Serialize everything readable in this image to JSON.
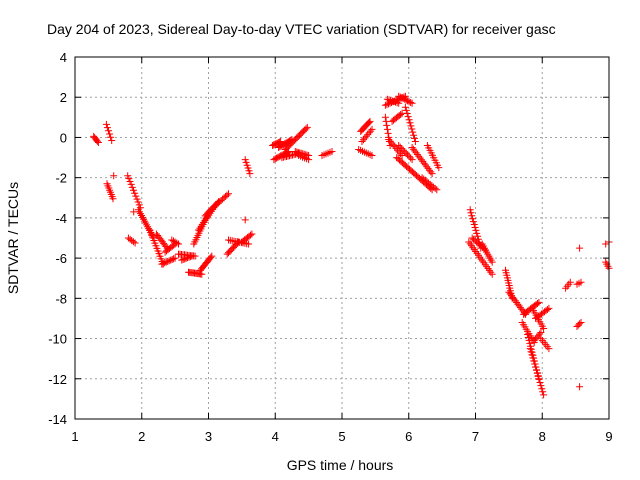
{
  "chart_data": {
    "type": "scatter",
    "title": "Day 204 of 2023, Sidereal Day-to-day VTEC variation (SDTVAR) for receiver gasc",
    "xlabel": "GPS time / hours",
    "ylabel": "SDTVAR / TECUs",
    "xlim": [
      1,
      9
    ],
    "ylim": [
      -14,
      4
    ],
    "x_ticks": [
      1,
      2,
      3,
      4,
      5,
      6,
      7,
      8,
      9
    ],
    "y_ticks": [
      4,
      2,
      0,
      -2,
      -4,
      -6,
      -8,
      -10,
      -12,
      -14
    ],
    "x_tick_labels": [
      "1",
      "2",
      "3",
      "4",
      "5",
      "6",
      "7",
      "8",
      "9"
    ],
    "y_tick_labels": [
      "4",
      "2",
      "0",
      "-2",
      "-4",
      "-6",
      "-8",
      "-10",
      "-12",
      "-14"
    ],
    "grid": true,
    "marker": "+",
    "color": "#ff0000",
    "segments": [
      {
        "x0": 1.28,
        "y0": 0.05,
        "x1": 1.35,
        "y1": -0.25,
        "n": 6
      },
      {
        "x0": 1.47,
        "y0": 0.65,
        "x1": 1.55,
        "y1": -0.15,
        "n": 6
      },
      {
        "x0": 1.48,
        "y0": -2.3,
        "x1": 1.57,
        "y1": -3.05,
        "n": 8
      },
      {
        "x0": 1.58,
        "y0": -1.9,
        "x1": 1.58,
        "y1": -1.9,
        "n": 1
      },
      {
        "x0": 1.79,
        "y0": -1.9,
        "x1": 1.98,
        "y1": -3.5,
        "n": 12
      },
      {
        "x0": 1.88,
        "y0": -3.7,
        "x1": 1.88,
        "y1": -3.7,
        "n": 1
      },
      {
        "x0": 1.8,
        "y0": -5.0,
        "x1": 1.9,
        "y1": -5.25,
        "n": 5
      },
      {
        "x0": 1.95,
        "y0": -3.6,
        "x1": 2.18,
        "y1": -5.0,
        "n": 16
      },
      {
        "x0": 2.12,
        "y0": -4.6,
        "x1": 2.32,
        "y1": -6.3,
        "n": 14
      },
      {
        "x0": 2.22,
        "y0": -4.8,
        "x1": 2.38,
        "y1": -5.5,
        "n": 10
      },
      {
        "x0": 2.3,
        "y0": -6.3,
        "x1": 2.5,
        "y1": -6.0,
        "n": 10
      },
      {
        "x0": 2.35,
        "y0": -5.7,
        "x1": 2.5,
        "y1": -5.3,
        "n": 8
      },
      {
        "x0": 2.45,
        "y0": -5.1,
        "x1": 2.55,
        "y1": -5.3,
        "n": 5
      },
      {
        "x0": 2.55,
        "y0": -5.8,
        "x1": 2.8,
        "y1": -5.9,
        "n": 12
      },
      {
        "x0": 2.6,
        "y0": -6.1,
        "x1": 2.75,
        "y1": -5.9,
        "n": 8
      },
      {
        "x0": 2.7,
        "y0": -6.7,
        "x1": 2.9,
        "y1": -6.8,
        "n": 12
      },
      {
        "x0": 2.78,
        "y0": -5.3,
        "x1": 2.98,
        "y1": -3.9,
        "n": 14
      },
      {
        "x0": 2.88,
        "y0": -6.6,
        "x1": 3.05,
        "y1": -5.9,
        "n": 12
      },
      {
        "x0": 2.85,
        "y0": -4.6,
        "x1": 3.1,
        "y1": -3.4,
        "n": 14
      },
      {
        "x0": 2.95,
        "y0": -3.9,
        "x1": 3.15,
        "y1": -3.2,
        "n": 12
      },
      {
        "x0": 3.1,
        "y0": -3.4,
        "x1": 3.3,
        "y1": -2.8,
        "n": 10
      },
      {
        "x0": 3.28,
        "y0": -5.8,
        "x1": 3.45,
        "y1": -5.2,
        "n": 10
      },
      {
        "x0": 3.3,
        "y0": -5.1,
        "x1": 3.6,
        "y1": -5.3,
        "n": 12
      },
      {
        "x0": 3.5,
        "y0": -5.2,
        "x1": 3.65,
        "y1": -4.8,
        "n": 8
      },
      {
        "x0": 3.55,
        "y0": -4.1,
        "x1": 3.55,
        "y1": -4.1,
        "n": 1
      },
      {
        "x0": 3.55,
        "y0": -1.1,
        "x1": 3.62,
        "y1": -1.8,
        "n": 6
      },
      {
        "x0": 3.96,
        "y0": -0.4,
        "x1": 4.08,
        "y1": -0.2,
        "n": 8
      },
      {
        "x0": 3.98,
        "y0": -1.1,
        "x1": 4.2,
        "y1": -0.7,
        "n": 12
      },
      {
        "x0": 4.05,
        "y0": -0.5,
        "x1": 4.25,
        "y1": -0.1,
        "n": 12
      },
      {
        "x0": 4.1,
        "y0": -1.0,
        "x1": 4.35,
        "y1": -0.8,
        "n": 12
      },
      {
        "x0": 4.15,
        "y0": -0.6,
        "x1": 4.48,
        "y1": 0.5,
        "n": 18
      },
      {
        "x0": 4.3,
        "y0": -0.7,
        "x1": 4.5,
        "y1": -0.9,
        "n": 10
      },
      {
        "x0": 4.35,
        "y0": -0.9,
        "x1": 4.5,
        "y1": -1.1,
        "n": 6
      },
      {
        "x0": 4.7,
        "y0": -0.9,
        "x1": 4.85,
        "y1": -0.7,
        "n": 6
      },
      {
        "x0": 5.25,
        "y0": -0.6,
        "x1": 5.45,
        "y1": -0.9,
        "n": 8
      },
      {
        "x0": 5.28,
        "y0": 0.3,
        "x1": 5.42,
        "y1": 0.8,
        "n": 10
      },
      {
        "x0": 5.3,
        "y0": -0.2,
        "x1": 5.45,
        "y1": 0.4,
        "n": 8
      },
      {
        "x0": 5.65,
        "y0": 1.6,
        "x1": 5.95,
        "y1": 2.05,
        "n": 14
      },
      {
        "x0": 5.68,
        "y0": 1.9,
        "x1": 5.85,
        "y1": 1.7,
        "n": 8
      },
      {
        "x0": 5.85,
        "y0": 2.05,
        "x1": 6.05,
        "y1": 1.7,
        "n": 10
      },
      {
        "x0": 5.65,
        "y0": 1.0,
        "x1": 5.72,
        "y1": -0.4,
        "n": 8
      },
      {
        "x0": 5.7,
        "y0": -0.1,
        "x1": 5.9,
        "y1": -0.9,
        "n": 10
      },
      {
        "x0": 5.75,
        "y0": 0.8,
        "x1": 5.9,
        "y1": 1.2,
        "n": 8
      },
      {
        "x0": 5.85,
        "y0": -0.4,
        "x1": 6.05,
        "y1": -1.1,
        "n": 10
      },
      {
        "x0": 5.95,
        "y0": 1.5,
        "x1": 6.1,
        "y1": -0.2,
        "n": 12
      },
      {
        "x0": 5.82,
        "y0": -1.0,
        "x1": 6.35,
        "y1": -2.6,
        "n": 26
      },
      {
        "x0": 6.05,
        "y0": -0.5,
        "x1": 6.35,
        "y1": -1.8,
        "n": 16
      },
      {
        "x0": 6.2,
        "y0": -2.0,
        "x1": 6.42,
        "y1": -2.6,
        "n": 10
      },
      {
        "x0": 6.28,
        "y0": -0.4,
        "x1": 6.45,
        "y1": -1.5,
        "n": 10
      },
      {
        "x0": 6.92,
        "y0": -3.6,
        "x1": 7.08,
        "y1": -5.5,
        "n": 14
      },
      {
        "x0": 6.95,
        "y0": -5.0,
        "x1": 7.15,
        "y1": -5.6,
        "n": 10
      },
      {
        "x0": 6.9,
        "y0": -5.2,
        "x1": 7.25,
        "y1": -6.8,
        "n": 18
      },
      {
        "x0": 7.1,
        "y0": -5.3,
        "x1": 7.25,
        "y1": -6.2,
        "n": 10
      },
      {
        "x0": 7.45,
        "y0": -6.6,
        "x1": 7.55,
        "y1": -8.0,
        "n": 12
      },
      {
        "x0": 7.5,
        "y0": -7.7,
        "x1": 7.75,
        "y1": -8.8,
        "n": 14
      },
      {
        "x0": 7.72,
        "y0": -8.8,
        "x1": 7.95,
        "y1": -8.2,
        "n": 12
      },
      {
        "x0": 7.7,
        "y0": -9.2,
        "x1": 7.88,
        "y1": -10.2,
        "n": 10
      },
      {
        "x0": 7.78,
        "y0": -9.8,
        "x1": 7.95,
        "y1": -12.0,
        "n": 16
      },
      {
        "x0": 7.82,
        "y0": -10.5,
        "x1": 8.02,
        "y1": -12.8,
        "n": 16
      },
      {
        "x0": 7.85,
        "y0": -8.5,
        "x1": 8.02,
        "y1": -9.5,
        "n": 10
      },
      {
        "x0": 7.9,
        "y0": -9.0,
        "x1": 8.1,
        "y1": -8.5,
        "n": 10
      },
      {
        "x0": 7.98,
        "y0": -10.0,
        "x1": 8.1,
        "y1": -10.5,
        "n": 6
      },
      {
        "x0": 7.88,
        "y0": -10.1,
        "x1": 7.98,
        "y1": -9.7,
        "n": 6
      },
      {
        "x0": 8.35,
        "y0": -7.5,
        "x1": 8.42,
        "y1": -7.2,
        "n": 4
      },
      {
        "x0": 8.52,
        "y0": -9.4,
        "x1": 8.58,
        "y1": -9.2,
        "n": 4
      },
      {
        "x0": 8.52,
        "y0": -7.3,
        "x1": 8.58,
        "y1": -7.2,
        "n": 3
      },
      {
        "x0": 8.56,
        "y0": -5.5,
        "x1": 8.56,
        "y1": -5.5,
        "n": 1
      },
      {
        "x0": 8.56,
        "y0": -12.4,
        "x1": 8.56,
        "y1": -12.4,
        "n": 1
      },
      {
        "x0": 8.95,
        "y0": -6.2,
        "x1": 9.0,
        "y1": -6.5,
        "n": 4
      },
      {
        "x0": 8.95,
        "y0": -5.3,
        "x1": 9.0,
        "y1": -5.2,
        "n": 2
      }
    ]
  }
}
